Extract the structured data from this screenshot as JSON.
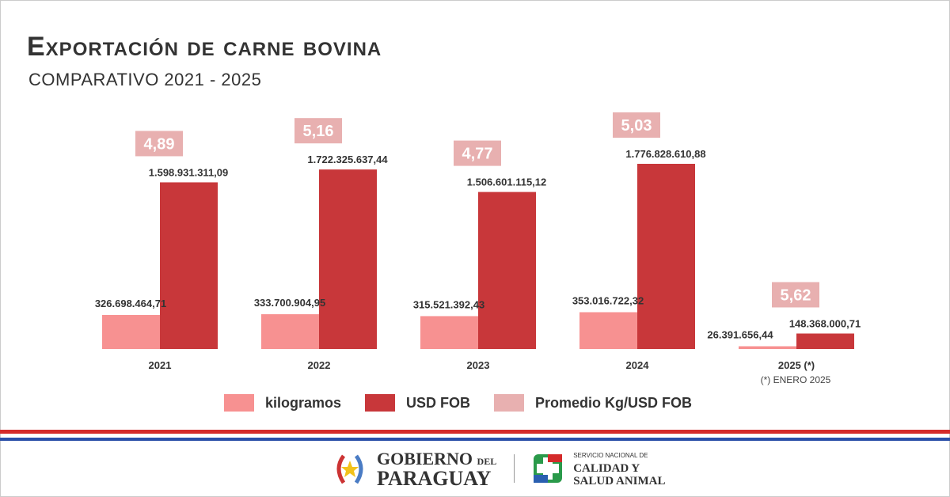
{
  "title": "Exportación de carne bovina",
  "subtitle": "COMPARATIVO 2021 - 2025",
  "chart_data": {
    "type": "bar",
    "categories": [
      "2021",
      "2022",
      "2023",
      "2024",
      "2025 (*)"
    ],
    "series": [
      {
        "name": "kilogramos",
        "color": "#f79191",
        "values": [
          326698464.71,
          333700904.95,
          315521392.43,
          353016722.32,
          26391656.44
        ],
        "labels": [
          "326.698.464,71",
          "333.700.904,95",
          "315.521.392,43",
          "353.016.722,32",
          "26.391.656,44"
        ]
      },
      {
        "name": "USD FOB",
        "color": "#c8373a",
        "values": [
          1598931311.09,
          1722325637.44,
          1506601115.12,
          1776828610.88,
          148368000.71
        ],
        "labels": [
          "1.598.931.311,09",
          "1.722.325.637,44",
          "1.506.601.115,12",
          "1.776.828.610,88",
          "148.368.000,71"
        ]
      },
      {
        "name": "Promedio Kg/USD FOB",
        "color": "#e8b0b0",
        "values": [
          4.89,
          5.16,
          4.77,
          5.03,
          5.62
        ],
        "labels": [
          "4,89",
          "5,16",
          "4,77",
          "5,03",
          "5,62"
        ]
      }
    ],
    "note": "(*) ENERO 2025",
    "legend": "bottom"
  },
  "footer": {
    "gov_line1": "GOBIERNO",
    "gov_del": "DEL",
    "gov_line2": "PARAGUAY",
    "senacsa_small": "SERVICIO NACIONAL DE",
    "senacsa_line1": "CALIDAD Y",
    "senacsa_line2": "SALUD ANIMAL"
  }
}
